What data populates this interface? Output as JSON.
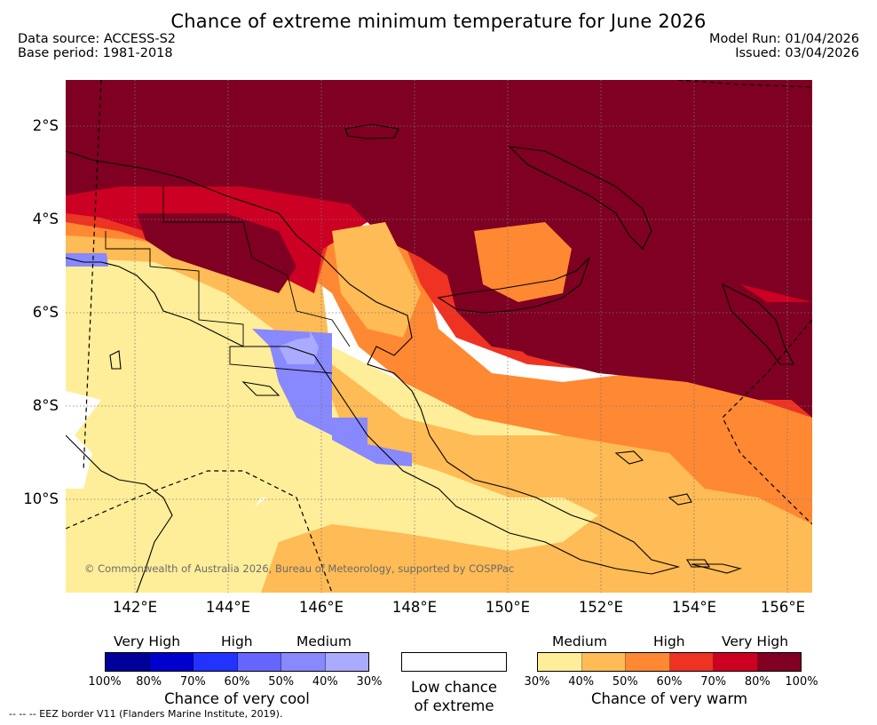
{
  "title": "Chance of extreme minimum temperature for June 2026",
  "data_source": "Data source: ACCESS-S2",
  "base_period": "Base period: 1981-2018",
  "model_run": "Model Run: 01/04/2026",
  "issued": "Issued: 03/04/2026",
  "copyright": "© Commonwealth of Australia 2026, Bureau of Meteorology, supported by COSPPac",
  "lat_labels": [
    "2°S",
    "4°S",
    "6°S",
    "8°S",
    "10°S"
  ],
  "lon_labels": [
    "142°E",
    "144°E",
    "146°E",
    "148°E",
    "150°E",
    "152°E",
    "154°E",
    "156°E"
  ],
  "legend": {
    "cool": {
      "headings": [
        "Very High",
        "High",
        "Medium"
      ],
      "colors": [
        "#000099",
        "#0000cc",
        "#2233ff",
        "#6666ff",
        "#8888ff",
        "#aaaaff"
      ],
      "ticks": [
        "100%",
        "80%",
        "70%",
        "60%",
        "50%",
        "40%",
        "30%"
      ],
      "label": "Chance of very cool"
    },
    "low": {
      "line1": "Low chance",
      "line2": "of extreme"
    },
    "warm": {
      "headings": [
        "Medium",
        "High",
        "Very High"
      ],
      "colors": [
        "#ffee99",
        "#ffbb55",
        "#ff8833",
        "#ee3322",
        "#cc0022",
        "#7f0022"
      ],
      "ticks": [
        "30%",
        "40%",
        "50%",
        "60%",
        "70%",
        "80%",
        "100%"
      ],
      "label": "Chance of very warm"
    }
  },
  "eez_note": "--  --  -- EEZ border V11 (Flanders Marine Institute, 2019)."
}
